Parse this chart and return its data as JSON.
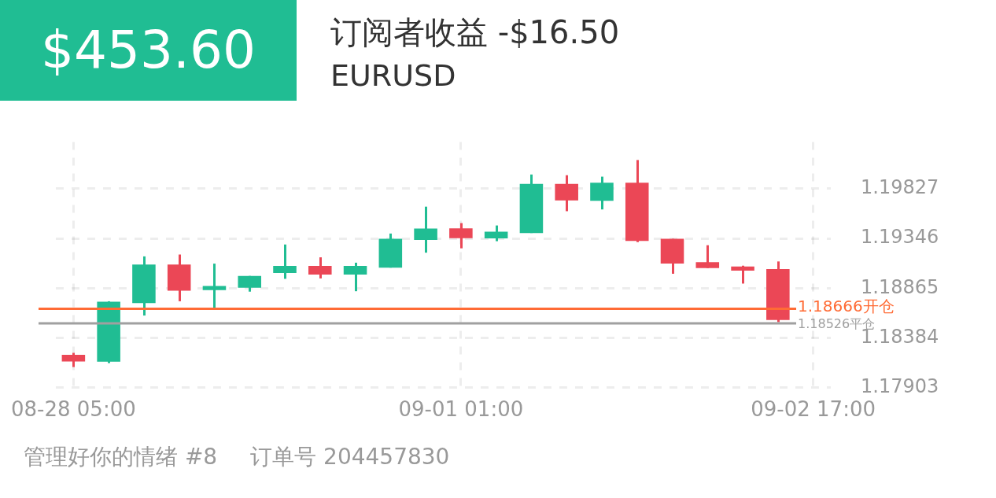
{
  "chart_data": {
    "type": "candlestick",
    "title": "订阅者收益 -$16.50",
    "subtitle": "EURUSD",
    "annotations": [
      "$453.60",
      "管理好你的情绪 #8",
      "订单号 204457830"
    ],
    "categories": [
      "08-28 05:00",
      null,
      null,
      null,
      null,
      null,
      null,
      null,
      null,
      null,
      null,
      "09-01 01:00",
      null,
      null,
      null,
      null,
      null,
      null,
      null,
      null,
      null,
      "09-02 17:00"
    ],
    "ohlc": [
      [
        1.18221,
        1.1824,
        1.18103,
        1.18157
      ],
      [
        1.18155,
        1.18739,
        1.18141,
        1.18735
      ],
      [
        1.18721,
        1.19173,
        1.18601,
        1.19094
      ],
      [
        1.19094,
        1.19191,
        1.18739,
        1.18841
      ],
      [
        1.18846,
        1.19103,
        1.18675,
        1.18887
      ],
      [
        1.18869,
        1.18984,
        1.18832,
        1.18984
      ],
      [
        1.19012,
        1.19288,
        1.18956,
        1.19081
      ],
      [
        1.19081,
        1.19164,
        1.1896,
        1.18998
      ],
      [
        1.18998,
        1.19112,
        1.18836,
        1.19081
      ],
      [
        1.19064,
        1.19394,
        1.19064,
        1.19343
      ],
      [
        1.19332,
        1.19654,
        1.19209,
        1.19442
      ],
      [
        1.19444,
        1.19495,
        1.19251,
        1.1935
      ],
      [
        1.19347,
        1.19472,
        1.1932,
        1.19412
      ],
      [
        1.19399,
        1.19965,
        1.19399,
        1.19875
      ],
      [
        1.19875,
        1.19958,
        1.1961,
        1.19714
      ],
      [
        1.1971,
        1.19944,
        1.19627,
        1.19886
      ],
      [
        1.19886,
        1.20105,
        1.19311,
        1.19323
      ],
      [
        1.19343,
        1.19343,
        1.19005,
        1.19103
      ],
      [
        1.19117,
        1.19281,
        1.1906,
        1.1906
      ],
      [
        1.19076,
        1.19083,
        1.1891,
        1.19036
      ],
      [
        1.1905,
        1.19124,
        1.18537,
        1.18558
      ],
      null
    ],
    "colors": [
      "#eb4756",
      "#20bd93",
      "#20bd93",
      "#eb4756",
      "#20bd93",
      "#20bd93",
      "#20bd93",
      "#eb4756",
      "#20bd93",
      "#20bd93",
      "#20bd93",
      "#eb4756",
      "#20bd93",
      "#20bd93",
      "#eb4756",
      "#20bd93",
      "#eb4756",
      "#eb4756",
      "#eb4756",
      "#eb4756",
      "#eb4756",
      null
    ],
    "ylim": [
      1.17903,
      1.2028
    ],
    "yticks": [
      1.17903,
      1.18384,
      1.18865,
      1.19346,
      1.19827
    ],
    "grid": true,
    "ref_lines": [
      {
        "axis": "y",
        "value": 1.18666,
        "label": "1.18666开仓",
        "color": "#ff6b35"
      },
      {
        "axis": "y",
        "value": 1.18526,
        "label": "1.18526平仓",
        "color": "#a0a0a0"
      }
    ]
  }
}
